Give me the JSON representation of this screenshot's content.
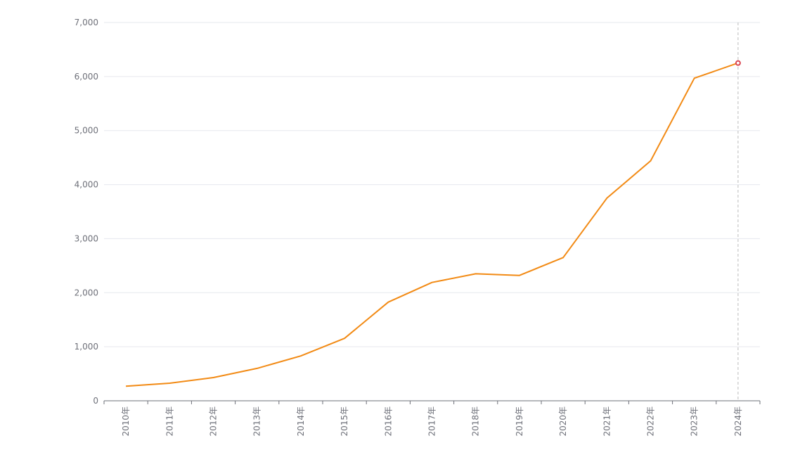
{
  "chart_data": {
    "type": "line",
    "categories": [
      "2010年",
      "2011年",
      "2012年",
      "2013年",
      "2014年",
      "2015年",
      "2016年",
      "2017年",
      "2018年",
      "2019年",
      "2020年",
      "2021年",
      "2022年",
      "2023年",
      "2024年"
    ],
    "series": [
      {
        "values": [
          270,
          325,
          430,
          600,
          830,
          1155,
          1825,
          2190,
          2350,
          2320,
          2650,
          3750,
          4440,
          5970,
          6250
        ],
        "color": "#f28a14"
      }
    ],
    "yticks": [
      "0",
      "1,000",
      "2,000",
      "3,000",
      "4,000",
      "5,000",
      "6,000",
      "7,000"
    ],
    "ylim": [
      0,
      7000
    ],
    "grid": true,
    "legend": "none",
    "highlight": {
      "category": "2024年",
      "marker_color": "#d9434f",
      "cursor_line": true
    }
  }
}
